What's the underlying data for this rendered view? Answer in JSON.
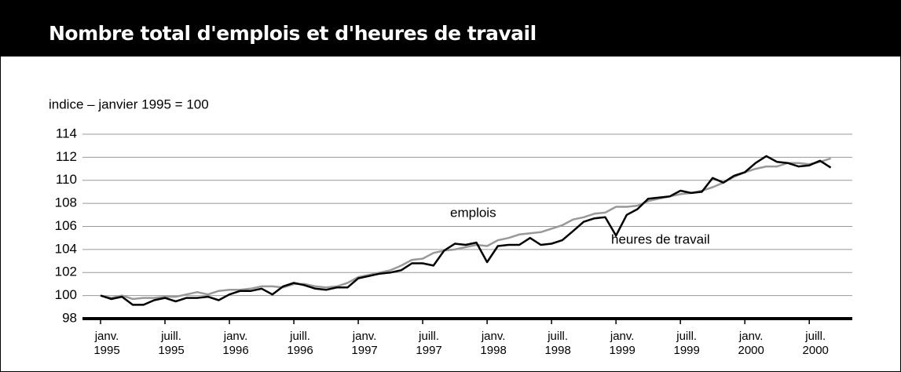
{
  "chart_data": {
    "type": "line",
    "title": "Nombre total d'emplois et d'heures de travail",
    "y_label": "indice – janvier 1995 = 100",
    "categories": [
      "janv. 1995",
      null,
      null,
      null,
      null,
      null,
      "juill. 1995",
      null,
      null,
      null,
      null,
      null,
      "janv. 1996",
      null,
      null,
      null,
      null,
      null,
      "juill. 1996",
      null,
      null,
      null,
      null,
      null,
      "janv. 1997",
      null,
      null,
      null,
      null,
      null,
      "juill. 1997",
      null,
      null,
      null,
      null,
      null,
      "janv. 1998",
      null,
      null,
      null,
      null,
      null,
      "juill. 1998",
      null,
      null,
      null,
      null,
      null,
      "janv. 1999",
      null,
      null,
      null,
      null,
      null,
      "juill. 1999",
      null,
      null,
      null,
      null,
      null,
      "janv. 2000",
      null,
      null,
      null,
      null,
      null,
      "juill. 2000",
      null,
      null
    ],
    "series": [
      {
        "name": "emplois",
        "color": "#999999",
        "values": [
          100.0,
          99.8,
          100.0,
          99.7,
          99.8,
          99.8,
          99.9,
          99.9,
          100.1,
          100.3,
          100.1,
          100.4,
          100.5,
          100.5,
          100.6,
          100.8,
          100.8,
          100.7,
          101.0,
          101.0,
          100.8,
          100.7,
          100.8,
          101.1,
          101.6,
          101.8,
          102.0,
          102.2,
          102.6,
          103.1,
          103.2,
          103.7,
          103.9,
          104.0,
          104.2,
          104.4,
          104.3,
          104.8,
          105.0,
          105.3,
          105.4,
          105.5,
          105.8,
          106.1,
          106.6,
          106.8,
          107.1,
          107.2,
          107.7,
          107.7,
          107.8,
          108.2,
          108.4,
          108.6,
          108.8,
          108.9,
          109.1,
          109.4,
          109.8,
          110.3,
          110.7,
          111.0,
          111.2,
          111.2,
          111.5,
          111.5,
          111.4,
          111.6,
          111.9
        ]
      },
      {
        "name": "heures de travail",
        "color": "#000000",
        "values": [
          100.0,
          99.7,
          99.9,
          99.2,
          99.2,
          99.6,
          99.8,
          99.5,
          99.8,
          99.8,
          99.9,
          99.6,
          100.1,
          100.4,
          100.4,
          100.6,
          100.1,
          100.8,
          101.1,
          100.9,
          100.6,
          100.5,
          100.7,
          100.7,
          101.5,
          101.7,
          101.9,
          102.0,
          102.2,
          102.8,
          102.8,
          102.6,
          103.9,
          104.5,
          104.4,
          104.6,
          102.9,
          104.3,
          104.4,
          104.4,
          105.0,
          104.4,
          104.5,
          104.8,
          105.6,
          106.4,
          106.7,
          106.8,
          105.2,
          107.0,
          107.5,
          108.4,
          108.5,
          108.6,
          109.1,
          108.9,
          109.0,
          110.2,
          109.8,
          110.4,
          110.7,
          111.5,
          112.1,
          111.6,
          111.5,
          111.2,
          111.3,
          111.7,
          111.1
        ]
      }
    ],
    "ylim": [
      98,
      114
    ],
    "yticks": [
      98,
      100,
      102,
      104,
      106,
      108,
      110,
      112,
      114
    ],
    "grid": true
  }
}
